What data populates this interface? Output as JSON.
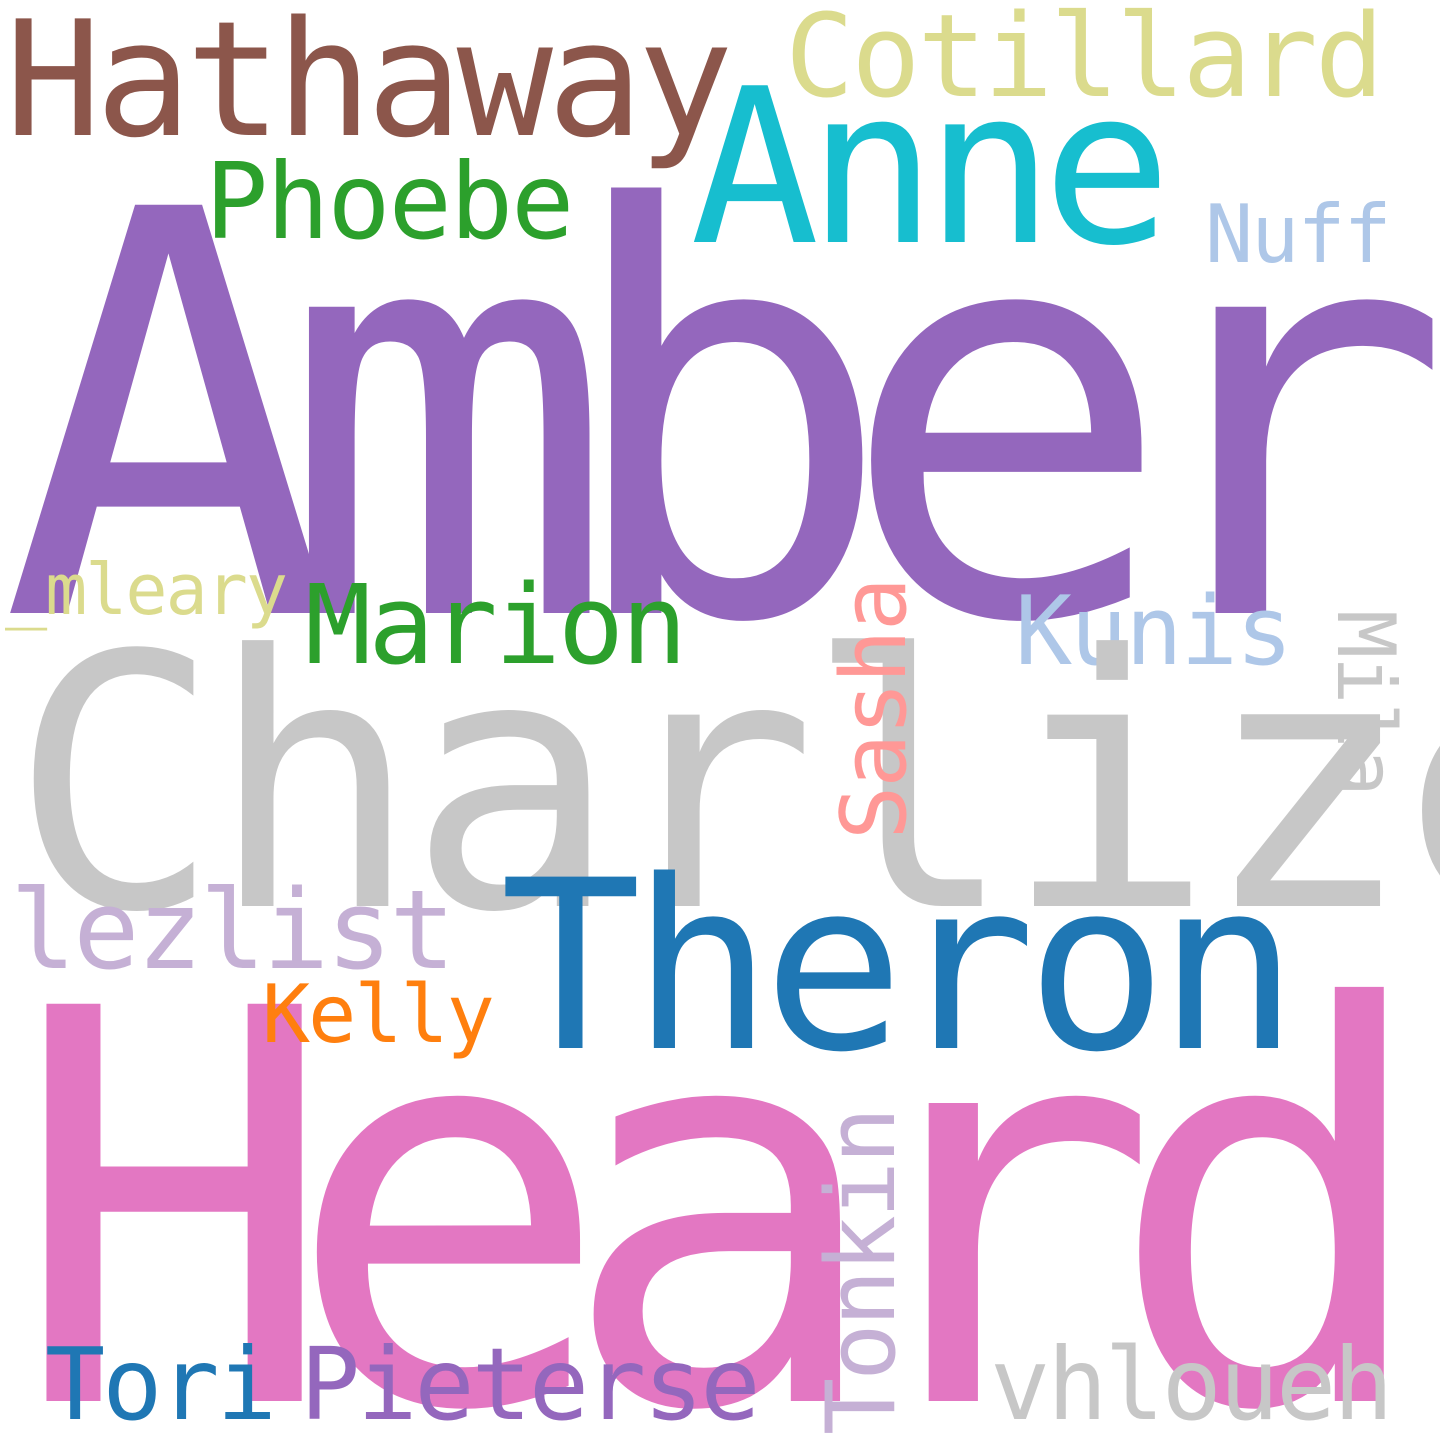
{
  "colors": {
    "background": "#ffffff",
    "purple": "#9467bd",
    "gray": "#c7c7c7",
    "pink": "#e377c2",
    "blue": "#1f77b4",
    "brown": "#8c564b",
    "cyan": "#17becf",
    "olive": "#dbdb8d",
    "green": "#2ca02c",
    "light_blue": "#aec7e8",
    "salmon": "#ff9896",
    "lavender": "#c5b0d5",
    "orange": "#ff7f0e"
  },
  "words": {
    "amber": "Amber",
    "charlize": "Charlize",
    "heard": "Heard",
    "theron": "Theron",
    "hathaway": "Hathaway",
    "anne": "Anne",
    "cotillard": "Cotillard",
    "phoebe": "Phoebe",
    "nuff": "Nuff",
    "mleary": "_mleary",
    "marion": "Marion",
    "kunis": "Kunis",
    "mila": "Mila",
    "sasha": "Sasha",
    "lezlist": "lezlist",
    "kelly": "Kelly",
    "tonkin": "Tonkin",
    "tori": "Tori",
    "pieterse": "Pieterse",
    "vhloueh": "vhloueh"
  }
}
